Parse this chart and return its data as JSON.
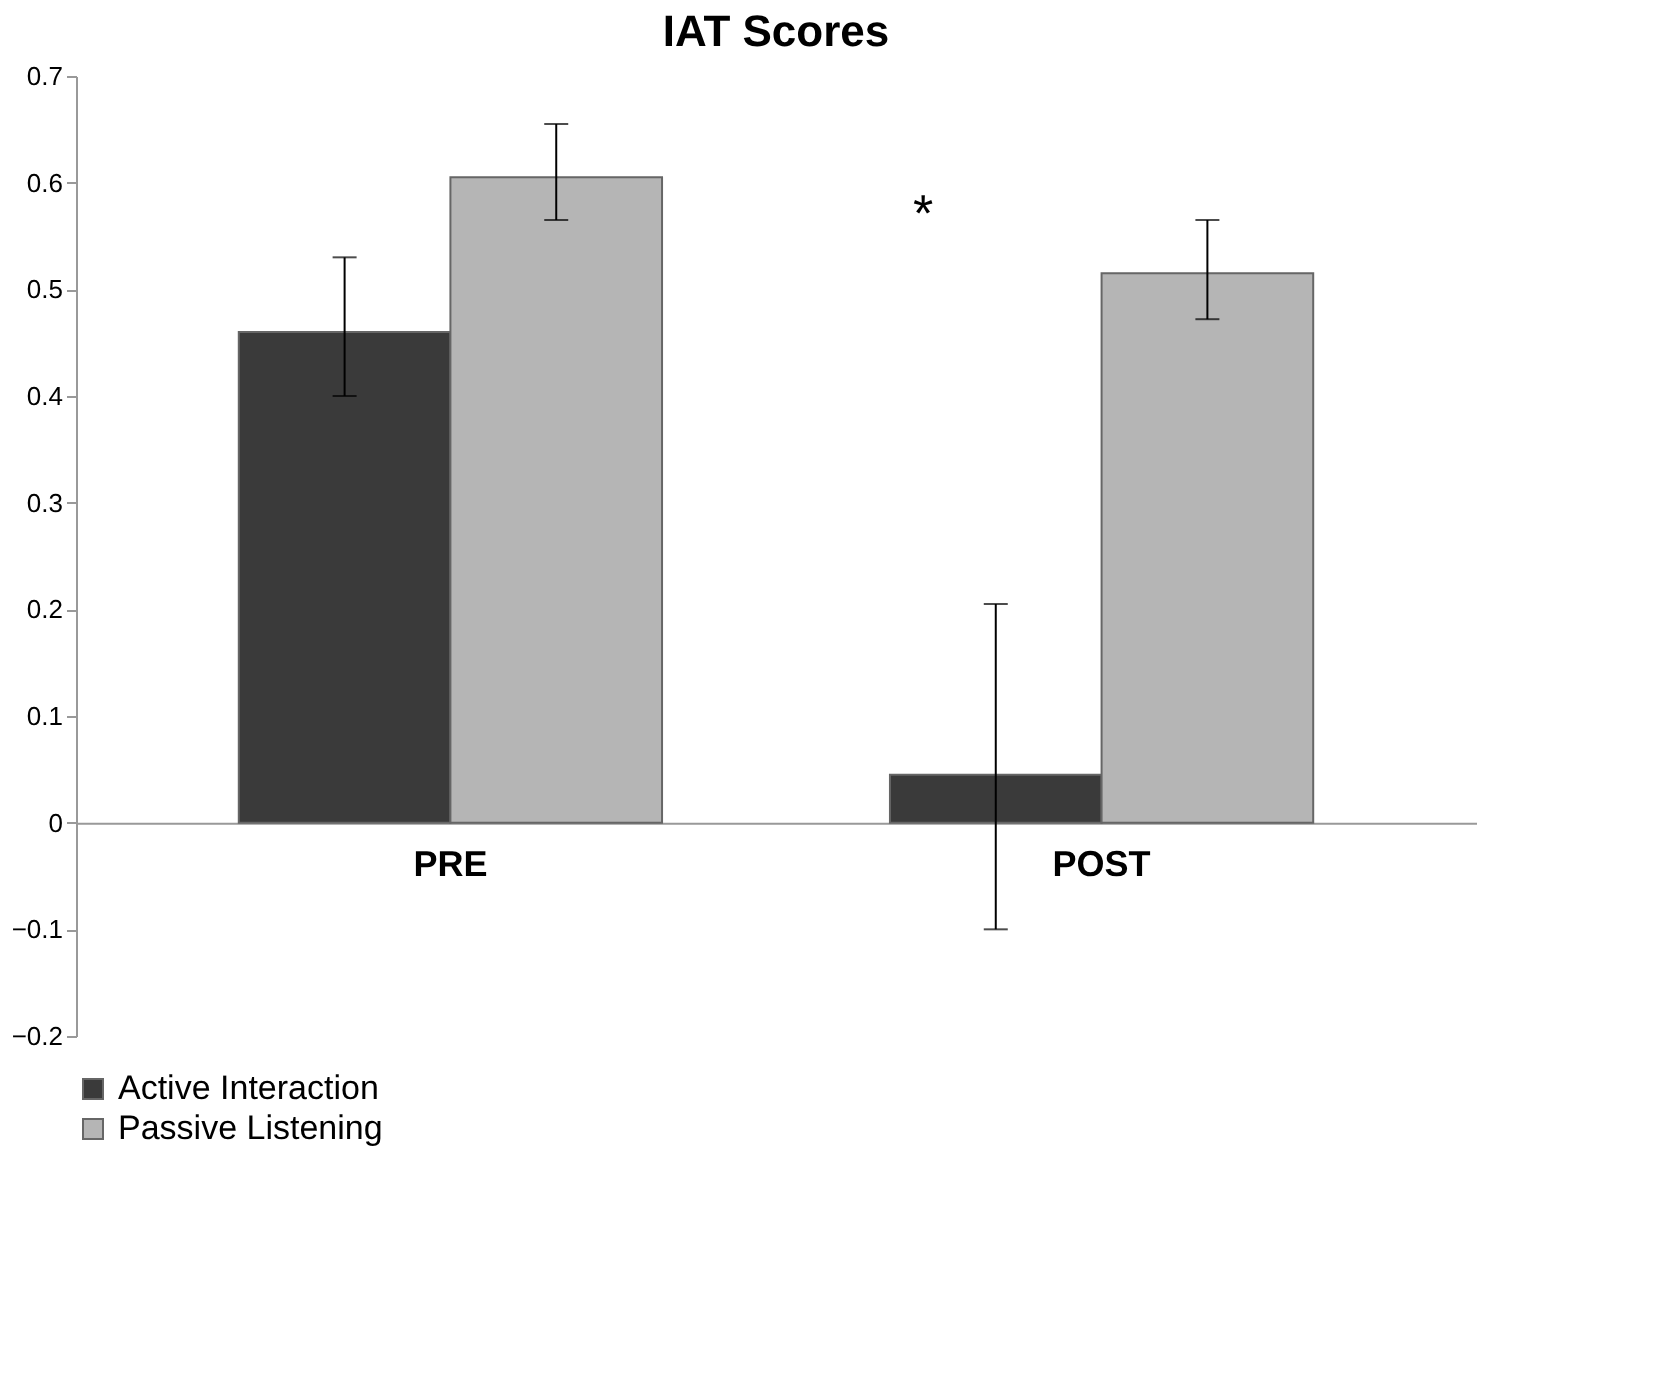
{
  "chart_data": {
    "type": "bar",
    "title": "IAT Scores",
    "categories": [
      "PRE",
      "POST"
    ],
    "series": [
      {
        "name": "Active Interaction",
        "color": "#3a3a3a",
        "values": [
          0.46,
          0.045
        ],
        "errors": [
          [
            0.4,
            0.53
          ],
          [
            -0.1,
            0.205
          ]
        ]
      },
      {
        "name": "Passive Listening",
        "color": "#b5b5b5",
        "values": [
          0.605,
          0.515
        ],
        "errors": [
          [
            0.565,
            0.655
          ],
          [
            0.472,
            0.565
          ]
        ]
      }
    ],
    "ylim": [
      -0.2,
      0.7
    ],
    "yticks": [
      -0.2,
      -0.1,
      0,
      0.1,
      0.2,
      0.3,
      0.4,
      0.5,
      0.6,
      0.7
    ],
    "annotations": [
      "*"
    ],
    "grid": false,
    "legend": "bottom"
  }
}
